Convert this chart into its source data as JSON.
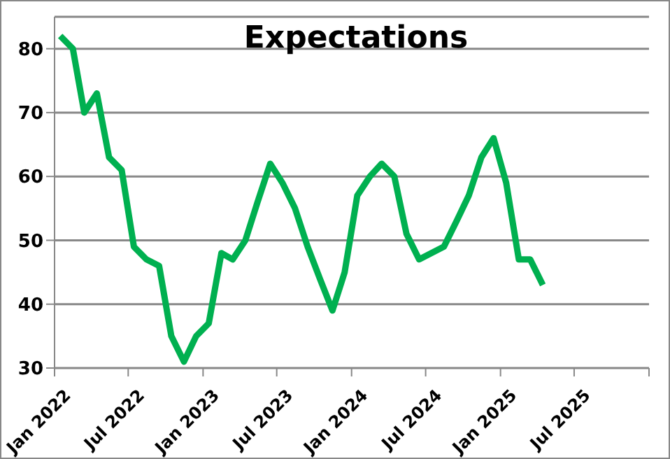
{
  "chart_data": {
    "type": "line",
    "title": "Expectations",
    "x": [
      "2022-01-15",
      "2022-02-15",
      "2022-03-15",
      "2022-04-15",
      "2022-05-15",
      "2022-06-15",
      "2022-07-15",
      "2022-08-15",
      "2022-09-15",
      "2022-10-15",
      "2022-11-15",
      "2022-12-15",
      "2023-01-15",
      "2023-02-15",
      "2023-03-15",
      "2023-04-15",
      "2023-05-15",
      "2023-06-15",
      "2023-07-15",
      "2023-08-15",
      "2023-09-15",
      "2023-10-15",
      "2023-11-15",
      "2023-12-15",
      "2024-01-15",
      "2024-02-15",
      "2024-03-15",
      "2024-04-15",
      "2024-05-15",
      "2024-06-15",
      "2024-07-15",
      "2024-08-15",
      "2024-09-15",
      "2024-10-15",
      "2024-11-15",
      "2024-12-15",
      "2025-01-15",
      "2025-02-15",
      "2025-03-15",
      "2025-04-15"
    ],
    "series": [
      {
        "color": "#00b050",
        "values": [
          82,
          80,
          70,
          73,
          63,
          61,
          49,
          47,
          46,
          35,
          31,
          35,
          37,
          48,
          47,
          50,
          56,
          62,
          59,
          55,
          49,
          44,
          39,
          45,
          57,
          60,
          62,
          60,
          51,
          47,
          48,
          49,
          53,
          57,
          63,
          66,
          59,
          47,
          47,
          43
        ]
      }
    ],
    "xlim": [
      "2022-01",
      "2026-01"
    ],
    "xticks": [
      {
        "value": "2022-01",
        "label": "Jan 2022"
      },
      {
        "value": "2022-07",
        "label": "Jul 2022"
      },
      {
        "value": "2023-01",
        "label": "Jan 2023"
      },
      {
        "value": "2023-07",
        "label": "Jul 2023"
      },
      {
        "value": "2024-01",
        "label": "Jan 2024"
      },
      {
        "value": "2024-07",
        "label": "Jul 2024"
      },
      {
        "value": "2025-01",
        "label": "Jan 2025"
      },
      {
        "value": "2025-07",
        "label": "Jul 2025"
      },
      {
        "value": "2026-01",
        "label": null
      }
    ],
    "ylim": [
      30,
      85
    ],
    "yticks": [
      30,
      40,
      50,
      60,
      70,
      80
    ],
    "grid": "y",
    "marker": "none",
    "line_style": "solid",
    "legend": false
  }
}
